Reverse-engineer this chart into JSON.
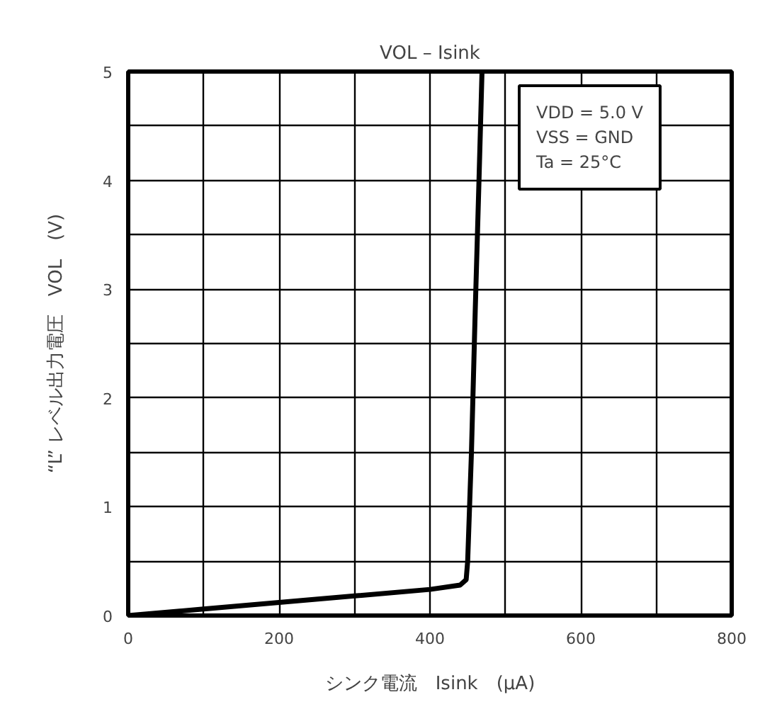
{
  "chart_data": {
    "type": "line",
    "title": "VOL – Isink",
    "xlabel": "シンク電流　Isink　(μA)",
    "ylabel": "“L” レベル出力電圧　VOL　(V)",
    "x": [
      0,
      100,
      200,
      300,
      400,
      440,
      448,
      450,
      455,
      460,
      465,
      469
    ],
    "series": [
      {
        "color": "#000000",
        "values": [
          0,
          0.06,
          0.12,
          0.18,
          0.24,
          0.28,
          0.33,
          0.5,
          1.5,
          2.8,
          4,
          5
        ]
      }
    ],
    "xlim": [
      0,
      800
    ],
    "ylim": [
      0,
      5
    ],
    "xticks": [
      0,
      {
        "value": 100,
        "label": null
      },
      200,
      {
        "value": 300,
        "label": null
      },
      400,
      {
        "value": 500,
        "label": null
      },
      600,
      {
        "value": 700,
        "label": null
      },
      800
    ],
    "yticks": [
      0,
      {
        "value": 0.5,
        "label": null
      },
      1,
      {
        "value": 1.5,
        "label": null
      },
      2,
      {
        "value": 2.5,
        "label": null
      },
      3,
      {
        "value": 3.5,
        "label": null
      },
      4,
      {
        "value": 4.5,
        "label": null
      },
      5
    ],
    "grid": true,
    "marker": "none",
    "line_style": "solid",
    "annotations": [
      "VDD = 5.0 V\nVSS = GND\nTa = 25°C"
    ]
  }
}
